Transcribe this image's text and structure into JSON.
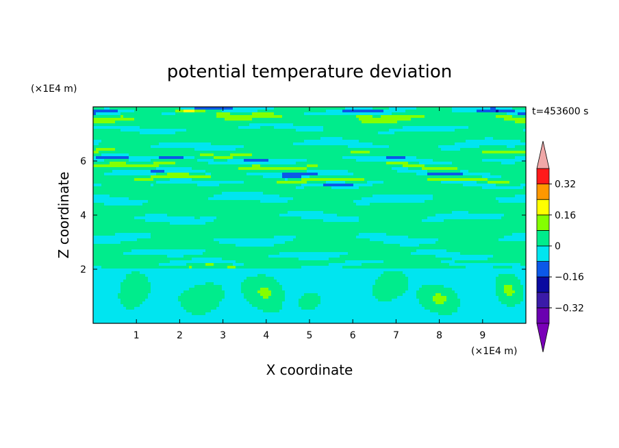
{
  "chart_data": {
    "type": "heatmap",
    "title": "potential temperature deviation",
    "xlabel": "X coordinate",
    "ylabel": "Z coordinate",
    "x_unit": "(×1E4 m)",
    "y_unit": "(×1E4 m)",
    "time_label": "t=453600 s",
    "xlim": [
      0,
      10
    ],
    "ylim": [
      0,
      8
    ],
    "x_ticks": [
      1,
      2,
      3,
      4,
      5,
      6,
      7,
      8,
      9
    ],
    "y_ticks": [
      2,
      4,
      6
    ],
    "colorbar": {
      "levels": [
        -0.4,
        -0.32,
        -0.24,
        -0.16,
        -0.08,
        0,
        0.08,
        0.16,
        0.24,
        0.32,
        0.4
      ],
      "labels": [
        {
          "value": 0.32,
          "text": "0.32"
        },
        {
          "value": 0.16,
          "text": "0.16"
        },
        {
          "value": 0,
          "text": "0"
        },
        {
          "value": -0.16,
          "text": "−0.16"
        },
        {
          "value": -0.32,
          "text": "−0.32"
        }
      ],
      "colors": [
        "#6a00b0",
        "#3a1aa8",
        "#0a0aa0",
        "#0b58e8",
        "#00e5f0",
        "#00ec8c",
        "#84ff00",
        "#ffff00",
        "#ff9800",
        "#ff1a1a"
      ],
      "extend_low_color": "#7a00b8",
      "extend_high_color": "#f0a8a8"
    },
    "field": {
      "background_level": 0.04,
      "bands": [
        {
          "z": 7.85,
          "level": -0.12,
          "thickness": 0.12
        },
        {
          "z": 7.72,
          "level": 0.1,
          "thickness": 0.1
        },
        {
          "z": 7.55,
          "level": 0.1,
          "thickness": 0.12
        },
        {
          "z": 7.2,
          "level": -0.06,
          "thickness": 0.1
        },
        {
          "z": 6.6,
          "level": -0.06,
          "thickness": 0.15
        },
        {
          "z": 6.3,
          "level": 0.1,
          "thickness": 0.1
        },
        {
          "z": 6.05,
          "level": -0.1,
          "thickness": 0.1
        },
        {
          "z": 5.8,
          "level": 0.12,
          "thickness": 0.1
        },
        {
          "z": 5.55,
          "level": -0.1,
          "thickness": 0.1
        },
        {
          "z": 5.35,
          "level": 0.14,
          "thickness": 0.08
        },
        {
          "z": 5.15,
          "level": -0.06,
          "thickness": 0.1
        },
        {
          "z": 4.6,
          "level": -0.04,
          "thickness": 0.2
        },
        {
          "z": 3.9,
          "level": -0.04,
          "thickness": 0.18
        },
        {
          "z": 3.1,
          "level": -0.04,
          "thickness": 0.2
        },
        {
          "z": 2.55,
          "level": -0.04,
          "thickness": 0.15
        },
        {
          "z": 2.2,
          "level": -0.05,
          "thickness": 0.1
        },
        {
          "z": 2.02,
          "level": 0.1,
          "thickness": 0.05
        }
      ],
      "lower_domain_top": 2.0,
      "lower_domain_level": -0.04,
      "plumes": [
        {
          "x": 0.9,
          "z": 1.1,
          "rx": 0.45,
          "rz": 0.8
        },
        {
          "x": 2.6,
          "z": 1.0,
          "rx": 0.6,
          "rz": 0.7
        },
        {
          "x": 4.0,
          "z": 1.2,
          "rx": 0.55,
          "rz": 0.8
        },
        {
          "x": 5.0,
          "z": 0.8,
          "rx": 0.35,
          "rz": 0.45
        },
        {
          "x": 6.8,
          "z": 1.3,
          "rx": 0.5,
          "rz": 0.7
        },
        {
          "x": 8.0,
          "z": 0.9,
          "rx": 0.55,
          "rz": 0.6
        },
        {
          "x": 9.6,
          "z": 1.2,
          "rx": 0.35,
          "rz": 0.7
        }
      ],
      "spots": [
        {
          "x": 5.7,
          "z": 5.15,
          "level": -0.2
        },
        {
          "x": 1.8,
          "z": 6.15,
          "level": -0.2
        },
        {
          "x": 2.2,
          "z": 7.85,
          "level": 0.18
        },
        {
          "x": 0.3,
          "z": 7.88,
          "level": -0.2
        },
        {
          "x": 9.3,
          "z": 7.88,
          "level": -0.2
        },
        {
          "x": 8.1,
          "z": 2.0,
          "level": 0.2
        },
        {
          "x": 4.6,
          "z": 5.55,
          "level": -0.2
        }
      ]
    }
  }
}
